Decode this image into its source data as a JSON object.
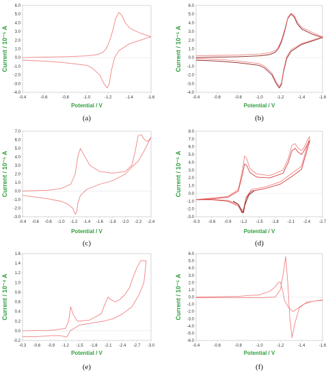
{
  "figure": {
    "colors": {
      "curve_red": "#f08080",
      "curve_dark": "#8b1a1a",
      "axis_label_green": "#2e9e3a",
      "frame": "#cccccc"
    },
    "axis_labels": {
      "y": "Current / 10⁻⁵ A",
      "x": "Potential / V"
    }
  },
  "chart_data": [
    {
      "panel": "(a)",
      "type": "line",
      "xlabel": "Potential / V",
      "ylabel": "Current / 10⁻⁵ A",
      "xlim": [
        -0.4,
        -1.6
      ],
      "ylim": [
        -4.0,
        6.0
      ],
      "xticks": [
        "-0.4",
        "-0.6",
        "-0.8",
        "-1.0",
        "-1.2",
        "-1.4",
        "-1.6"
      ],
      "yticks": [
        "6.0",
        "5.0",
        "4.0",
        "3.0",
        "2.0",
        "1.0",
        "0.0",
        "-1.0",
        "-2.0",
        "-3.0",
        "-4.0"
      ],
      "series": [
        {
          "color": "#f08080",
          "x": [
            -0.4,
            -0.6,
            -0.8,
            -1.0,
            -1.1,
            -1.15,
            -1.18,
            -1.21,
            -1.24,
            -1.27,
            -1.3,
            -1.33,
            -1.36,
            -1.4,
            -1.5,
            -1.6,
            -1.5,
            -1.4,
            -1.3,
            -1.26,
            -1.23,
            -1.21,
            -1.19,
            -1.16,
            -1.12,
            -1.05,
            -1.0,
            -0.8,
            -0.6,
            -0.4
          ],
          "y": [
            0.0,
            0.05,
            0.1,
            0.2,
            0.35,
            0.6,
            1.0,
            1.8,
            3.0,
            4.5,
            5.2,
            4.8,
            4.0,
            3.4,
            2.8,
            2.4,
            2.0,
            1.6,
            0.8,
            0.0,
            -1.5,
            -3.0,
            -3.5,
            -3.0,
            -2.0,
            -1.2,
            -0.9,
            -0.6,
            -0.4,
            -0.3
          ]
        }
      ]
    },
    {
      "panel": "(b)",
      "type": "line",
      "xlabel": "Potential / V",
      "ylabel": "Current / 10⁻⁵ A",
      "xlim": [
        -0.4,
        -1.6
      ],
      "ylim": [
        -4.0,
        6.0
      ],
      "xticks": [
        "-0.4",
        "-0.6",
        "-0.8",
        "-1.0",
        "-1.2",
        "-1.4",
        "-1.6"
      ],
      "yticks": [
        "6.0",
        "5.0",
        "4.0",
        "3.0",
        "2.0",
        "1.0",
        "0.0",
        "-1.0",
        "-2.0",
        "-3.0",
        "-4.0"
      ],
      "series": [
        {
          "color": "#8b1a1a",
          "x": [
            -0.4,
            -0.6,
            -0.8,
            -1.0,
            -1.1,
            -1.15,
            -1.18,
            -1.21,
            -1.24,
            -1.27,
            -1.3,
            -1.33,
            -1.36,
            -1.4,
            -1.5,
            -1.6,
            -1.5,
            -1.4,
            -1.3,
            -1.26,
            -1.23,
            -1.21,
            -1.19,
            -1.16,
            -1.12,
            -1.05,
            -1.0,
            -0.8,
            -0.6,
            -0.4
          ],
          "y": [
            0.0,
            0.05,
            0.1,
            0.2,
            0.35,
            0.6,
            1.0,
            1.8,
            3.0,
            4.5,
            5.0,
            4.7,
            3.9,
            3.3,
            2.7,
            2.3,
            1.9,
            1.5,
            0.7,
            -0.1,
            -1.6,
            -3.1,
            -3.5,
            -3.0,
            -2.0,
            -1.2,
            -0.9,
            -0.6,
            -0.4,
            -0.3
          ]
        },
        {
          "color": "#f08080",
          "x": [
            -0.4,
            -0.6,
            -0.8,
            -1.0,
            -1.1,
            -1.15,
            -1.18,
            -1.21,
            -1.24,
            -1.27,
            -1.3,
            -1.33,
            -1.36,
            -1.4,
            -1.5,
            -1.6,
            -1.5,
            -1.4,
            -1.3,
            -1.26,
            -1.23,
            -1.21,
            -1.19,
            -1.16,
            -1.12,
            -1.05,
            -1.0,
            -0.8,
            -0.6,
            -0.4
          ],
          "y": [
            0.2,
            0.25,
            0.3,
            0.4,
            0.55,
            0.8,
            1.2,
            2.0,
            3.2,
            4.6,
            5.1,
            4.9,
            4.1,
            3.5,
            2.9,
            2.4,
            2.0,
            1.6,
            0.9,
            0.1,
            -1.4,
            -2.9,
            -3.3,
            -2.8,
            -1.8,
            -1.0,
            -0.7,
            -0.4,
            -0.2,
            -0.1
          ]
        }
      ]
    },
    {
      "panel": "(c)",
      "type": "line",
      "xlabel": "Potential / V",
      "ylabel": "Current / 10⁻⁵ A",
      "xlim": [
        -0.4,
        -2.4
      ],
      "ylim": [
        -3.0,
        7.0
      ],
      "xticks": [
        "-0.4",
        "-0.6",
        "-0.8",
        "-1.0",
        "-1.2",
        "-1.4",
        "-1.6",
        "-1.8",
        "-2.0",
        "-2.2",
        "-2.4"
      ],
      "yticks": [
        "7.0",
        "6.0",
        "5.0",
        "4.0",
        "3.0",
        "2.0",
        "1.0",
        "0.0",
        "-1.0",
        "-2.0",
        "-3.0"
      ],
      "series": [
        {
          "color": "#f08080",
          "x": [
            -0.4,
            -0.8,
            -1.0,
            -1.15,
            -1.22,
            -1.26,
            -1.3,
            -1.35,
            -1.45,
            -1.6,
            -1.8,
            -2.0,
            -2.1,
            -2.15,
            -2.2,
            -2.25,
            -2.3,
            -2.35,
            -2.4,
            -2.3,
            -2.2,
            -2.1,
            -2.0,
            -1.8,
            -1.6,
            -1.4,
            -1.3,
            -1.26,
            -1.24,
            -1.22,
            -1.18,
            -1.1,
            -1.0,
            -0.8,
            -0.6,
            -0.4
          ],
          "y": [
            0.0,
            0.1,
            0.3,
            0.8,
            2.0,
            4.0,
            5.0,
            4.3,
            3.0,
            2.3,
            2.1,
            2.3,
            3.0,
            4.5,
            6.5,
            6.6,
            6.0,
            5.8,
            6.3,
            4.8,
            3.5,
            2.8,
            2.0,
            1.2,
            0.8,
            0.2,
            -0.5,
            -1.5,
            -2.5,
            -2.7,
            -2.0,
            -1.5,
            -1.2,
            -0.9,
            -0.7,
            -0.5
          ]
        }
      ]
    },
    {
      "panel": "(d)",
      "type": "line",
      "xlabel": "Potential / V",
      "ylabel": "Current / 10⁻⁵ A",
      "xlim": [
        -0.3,
        -2.7
      ],
      "ylim": [
        -3.0,
        8.0
      ],
      "xticks": [
        "-0.3",
        "-0.6",
        "-0.9",
        "-1.2",
        "-1.5",
        "-1.8",
        "-2.1",
        "-2.4",
        "-2.7"
      ],
      "yticks": [
        "8.0",
        "7.0",
        "6.0",
        "5.0",
        "4.0",
        "3.0",
        "2.0",
        "1.0",
        "0.0",
        "-1.0",
        "-2.0",
        "-3.0"
      ],
      "series": [
        {
          "color": "#f08080",
          "x": [
            -0.3,
            -0.6,
            -0.9,
            -1.1,
            -1.18,
            -1.22,
            -1.26,
            -1.32,
            -1.45,
            -1.7,
            -1.95,
            -2.05,
            -2.12,
            -2.18,
            -2.24,
            -2.3,
            -2.36,
            -2.42,
            -2.46,
            -2.3,
            -2.1,
            -1.9,
            -1.6,
            -1.35,
            -1.25,
            -1.2,
            -1.17,
            -1.1,
            -0.9,
            -0.6,
            -0.3
          ],
          "y": [
            -0.8,
            -0.6,
            -0.4,
            0.5,
            3.0,
            4.8,
            4.5,
            3.2,
            2.5,
            2.3,
            3.0,
            4.5,
            6.2,
            6.4,
            5.8,
            5.5,
            6.0,
            7.0,
            7.3,
            3.5,
            2.5,
            1.5,
            0.8,
            0.5,
            -0.5,
            -2.0,
            -2.2,
            -1.4,
            -0.9,
            -0.8,
            -0.8
          ]
        },
        {
          "color": "#d43c3c",
          "x": [
            -0.3,
            -0.6,
            -0.9,
            -1.1,
            -1.18,
            -1.22,
            -1.26,
            -1.32,
            -1.45,
            -1.7,
            -1.95,
            -2.05,
            -2.12,
            -2.18,
            -2.24,
            -2.3,
            -2.36,
            -2.42,
            -2.46,
            -2.3,
            -2.1,
            -1.9,
            -1.6,
            -1.35,
            -1.25,
            -1.2,
            -1.17,
            -1.1,
            -0.9,
            -0.6,
            -0.3
          ],
          "y": [
            -0.8,
            -0.7,
            -0.5,
            0.3,
            2.4,
            3.8,
            3.6,
            2.7,
            2.1,
            2.0,
            2.6,
            4.0,
            5.5,
            5.8,
            5.3,
            5.0,
            5.6,
            6.4,
            6.8,
            3.1,
            2.1,
            1.2,
            0.6,
            0.3,
            -0.6,
            -2.2,
            -2.5,
            -1.6,
            -1.0,
            -0.8,
            -0.8
          ]
        },
        {
          "color": "#6b1515",
          "x": [
            -1.0,
            -1.1,
            -1.15,
            -1.18,
            -1.2,
            -1.22,
            -1.3,
            -1.4
          ],
          "y": [
            -1.0,
            -1.4,
            -2.0,
            -2.4,
            -2.5,
            -1.6,
            -0.2,
            0.3
          ]
        }
      ]
    },
    {
      "panel": "(e)",
      "type": "line",
      "xlabel": "Potential / V",
      "ylabel": "Current / 10⁻⁴ A",
      "xlim": [
        -0.3,
        -3.0
      ],
      "ylim": [
        -0.2,
        1.6
      ],
      "xticks": [
        "-0.3",
        "-0.6",
        "-0.9",
        "-1.2",
        "-1.5",
        "-1.8",
        "-2.1",
        "-2.4",
        "-2.7",
        "-3.0"
      ],
      "yticks": [
        "1.6",
        "1.4",
        "1.2",
        "1.0",
        "0.8",
        "0.6",
        "0.4",
        "0.2",
        "0.0",
        "-0.2"
      ],
      "series": [
        {
          "color": "#f08080",
          "x": [
            -0.3,
            -0.9,
            -1.2,
            -1.27,
            -1.31,
            -1.36,
            -1.45,
            -1.7,
            -1.95,
            -2.05,
            -2.1,
            -2.15,
            -2.25,
            -2.35,
            -2.45,
            -2.55,
            -2.62,
            -2.7,
            -2.78,
            -2.85,
            -2.9,
            -2.85,
            -2.75,
            -2.6,
            -2.4,
            -2.2,
            -2.0,
            -1.8,
            -1.5,
            -1.3,
            -1.25,
            -1.22,
            -1.1,
            -0.9,
            -0.6,
            -0.3
          ],
          "y": [
            0.0,
            0.01,
            0.05,
            0.2,
            0.5,
            0.35,
            0.2,
            0.22,
            0.35,
            0.6,
            0.7,
            0.65,
            0.6,
            0.65,
            0.75,
            0.9,
            1.1,
            1.3,
            1.45,
            1.45,
            1.45,
            1.0,
            0.75,
            0.5,
            0.35,
            0.25,
            0.2,
            0.17,
            0.12,
            0.0,
            -0.1,
            -0.13,
            -0.1,
            -0.1,
            -0.12,
            -0.12
          ]
        }
      ]
    },
    {
      "panel": "(f)",
      "type": "line",
      "xlabel": "Potential / V",
      "ylabel": "Current / 10⁻⁵ A",
      "xlim": [
        -0.4,
        -1.6
      ],
      "ylim": [
        -6.0,
        6.0
      ],
      "xticks": [
        "-0.4",
        "-0.6",
        "-0.8",
        "-1.0",
        "-1.2",
        "-1.4",
        "-1.6"
      ],
      "yticks": [
        "6.0",
        "5.0",
        "4.0",
        "3.0",
        "2.0",
        "1.0",
        "0.0",
        "-1.0",
        "-2.0",
        "-3.0",
        "-4.0",
        "-5.0",
        "-6.0"
      ],
      "series": [
        {
          "color": "#f08080",
          "x": [
            -0.4,
            -0.8,
            -1.0,
            -1.1,
            -1.15,
            -1.18,
            -1.2,
            -1.22,
            -1.24,
            -1.28,
            -1.32,
            -1.36,
            -1.42,
            -1.5,
            -1.6
          ],
          "y": [
            0.0,
            0.1,
            0.3,
            0.8,
            1.4,
            2.0,
            2.1,
            1.0,
            -0.5,
            -1.5,
            -2.0,
            -1.6,
            -1.0,
            -0.6,
            -0.4
          ]
        },
        {
          "color": "#f08080",
          "x": [
            -0.4,
            -1.0,
            -1.15,
            -1.2,
            -1.23,
            -1.25,
            -1.27,
            -1.29,
            -1.31,
            -1.34,
            -1.38,
            -1.45,
            -1.55,
            -1.6
          ],
          "y": [
            -0.1,
            -0.1,
            0.0,
            1.0,
            3.5,
            5.6,
            2.0,
            -3.0,
            -5.6,
            -3.5,
            -1.5,
            -0.7,
            -0.5,
            -0.5
          ]
        }
      ]
    }
  ]
}
